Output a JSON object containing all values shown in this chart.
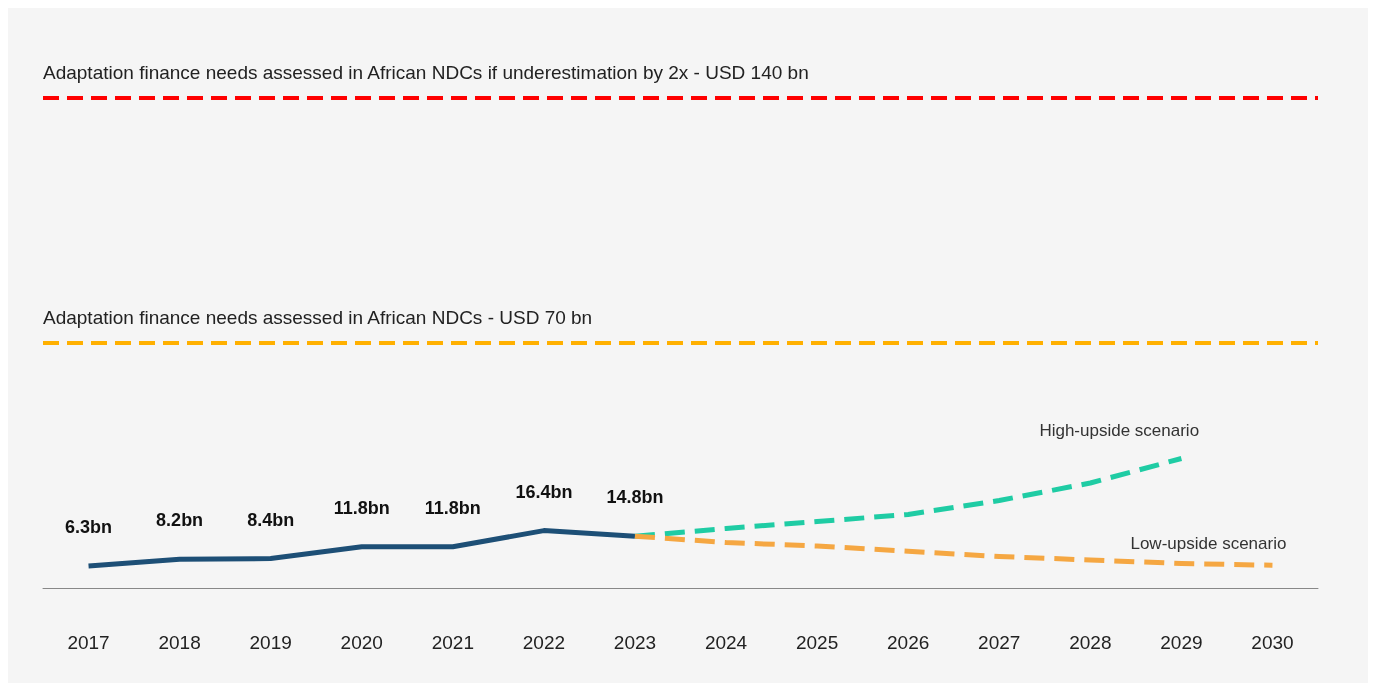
{
  "chart_data": {
    "type": "line",
    "categories": [
      "2017",
      "2018",
      "2019",
      "2020",
      "2021",
      "2022",
      "2023",
      "2024",
      "2025",
      "2026",
      "2027",
      "2028",
      "2029",
      "2030"
    ],
    "series": [
      {
        "color": "#1d4f76",
        "line_style": "solid",
        "values": [
          6.3,
          8.2,
          8.4,
          11.8,
          11.8,
          16.4,
          14.8,
          null,
          null,
          null,
          null,
          null,
          null,
          null
        ],
        "value_labels": [
          "6.3bn",
          "8.2bn",
          "8.4bn",
          "11.8bn",
          "11.8bn",
          "16.4bn",
          "14.8bn",
          null,
          null,
          null,
          null,
          null,
          null,
          null
        ]
      },
      {
        "name": "High-upside scenario",
        "color": "#1fcca4",
        "line_style": "dashed",
        "values": [
          null,
          null,
          null,
          null,
          null,
          null,
          14.8,
          17,
          19,
          21,
          25,
          30,
          37,
          null
        ]
      },
      {
        "name": "Low-upside scenario",
        "color": "#f5a742",
        "line_style": "dashed",
        "values": [
          null,
          null,
          null,
          null,
          null,
          null,
          14.8,
          13,
          12,
          10.5,
          9,
          8,
          7,
          6.5
        ]
      }
    ],
    "ref_lines": [
      {
        "axis": "y",
        "value": 140,
        "label": "Adaptation finance needs assessed in African NDCs if underestimation by 2x - USD 140 bn",
        "color": "#ff0000",
        "line_style": "dashed"
      },
      {
        "axis": "y",
        "value": 70,
        "label": "Adaptation finance needs assessed in African NDCs - USD 70 bn",
        "color": "#ffb000",
        "line_style": "dashed"
      }
    ],
    "grid": false,
    "legend": false,
    "marker": "none"
  }
}
